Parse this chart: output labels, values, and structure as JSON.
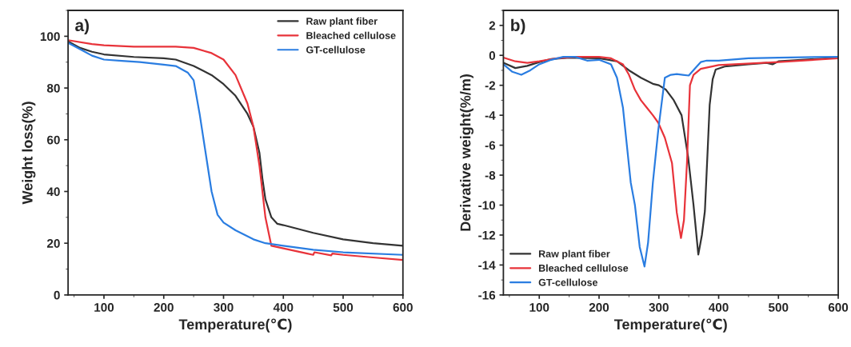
{
  "chart_data": [
    {
      "type": "line",
      "xlabel": "Temperature(℃)",
      "ylabel": "Weight loss(%)",
      "annotations": [
        "a)"
      ],
      "xlim": [
        40,
        600
      ],
      "ylim": [
        0,
        110
      ],
      "xticks": [
        100,
        200,
        300,
        400,
        500,
        600
      ],
      "yticks": [
        0,
        20,
        40,
        60,
        80,
        100
      ],
      "legend": "top right",
      "grid": false,
      "marker": "none",
      "line_style": "solid",
      "series": [
        {
          "name": "Raw plant fiber",
          "color": "#333333",
          "x": [
            40,
            60,
            80,
            100,
            150,
            200,
            220,
            250,
            280,
            300,
            320,
            340,
            350,
            360,
            365,
            370,
            380,
            390,
            400,
            450,
            500,
            550,
            600
          ],
          "values": [
            98,
            95.5,
            94,
            93,
            92,
            91.5,
            91,
            88.5,
            85,
            81.5,
            77,
            70,
            65,
            55,
            45,
            37,
            30,
            27.5,
            27,
            24,
            21.5,
            20,
            19
          ]
        },
        {
          "name": "Bleached cellulose",
          "color": "#e8333a",
          "x": [
            40,
            80,
            100,
            150,
            200,
            220,
            250,
            280,
            300,
            320,
            340,
            350,
            360,
            365,
            370,
            380,
            400,
            440,
            450,
            452,
            480,
            482,
            500,
            550,
            600
          ],
          "values": [
            98.5,
            97,
            96.5,
            96,
            96,
            96,
            95.5,
            93.5,
            91,
            85,
            74,
            65,
            50,
            40,
            30,
            19,
            18,
            16,
            15.5,
            16.5,
            15.3,
            16,
            15.5,
            14.5,
            13.5
          ]
        },
        {
          "name": "GT-cellulose",
          "color": "#2a7de1",
          "x": [
            40,
            60,
            80,
            100,
            130,
            160,
            200,
            220,
            240,
            250,
            260,
            270,
            280,
            290,
            300,
            320,
            350,
            370,
            400,
            450,
            500,
            600
          ],
          "values": [
            97.5,
            95,
            92.5,
            91,
            90.5,
            90,
            89,
            88.5,
            86,
            83,
            70,
            55,
            40,
            31,
            28,
            25,
            21.5,
            20,
            19,
            17.5,
            16.5,
            15.5
          ]
        }
      ]
    },
    {
      "type": "line",
      "xlabel": "Temperature(℃)",
      "ylabel": "Derivative weight(%/m)",
      "annotations": [
        "b)"
      ],
      "xlim": [
        40,
        600
      ],
      "ylim": [
        -16,
        3
      ],
      "xticks": [
        100,
        200,
        300,
        400,
        500,
        600
      ],
      "yticks": [
        -16,
        -14,
        -12,
        -10,
        -8,
        -6,
        -4,
        -2,
        0,
        2
      ],
      "legend": "bottom left",
      "grid": false,
      "marker": "none",
      "line_style": "solid",
      "series": [
        {
          "name": "Raw plant fiber",
          "color": "#333333",
          "x": [
            40,
            60,
            80,
            100,
            120,
            150,
            200,
            230,
            250,
            270,
            290,
            300,
            312,
            325,
            338,
            349,
            358,
            366,
            372,
            377,
            382,
            385,
            390,
            395,
            410,
            450,
            480,
            490,
            500,
            600
          ],
          "values": [
            -0.5,
            -0.85,
            -0.7,
            -0.45,
            -0.25,
            -0.15,
            -0.2,
            -0.4,
            -1.0,
            -1.5,
            -1.9,
            -2.0,
            -2.3,
            -3,
            -4,
            -6.8,
            -10,
            -13.3,
            -12,
            -10.4,
            -6,
            -3.3,
            -1.6,
            -0.95,
            -0.75,
            -0.6,
            -0.5,
            -0.6,
            -0.4,
            -0.15
          ]
        },
        {
          "name": "Bleached cellulose",
          "color": "#e8333a",
          "x": [
            40,
            60,
            80,
            100,
            130,
            160,
            200,
            220,
            240,
            250,
            260,
            270,
            280,
            290,
            299,
            310,
            322,
            330,
            337,
            342,
            347,
            352,
            358,
            370,
            400,
            500,
            600
          ],
          "values": [
            -0.15,
            -0.4,
            -0.5,
            -0.4,
            -0.2,
            -0.1,
            -0.1,
            -0.2,
            -0.6,
            -1.3,
            -2.3,
            -3,
            -3.5,
            -4,
            -4.5,
            -5.5,
            -7.2,
            -10.5,
            -12.2,
            -11,
            -7.2,
            -2,
            -1.3,
            -0.9,
            -0.65,
            -0.45,
            -0.2
          ]
        },
        {
          "name": "GT-cellulose",
          "color": "#2a7de1",
          "x": [
            40,
            55,
            70,
            85,
            100,
            120,
            140,
            160,
            180,
            200,
            220,
            230,
            240,
            253,
            260,
            268,
            276,
            282,
            290,
            299,
            310,
            320,
            330,
            340,
            350,
            360,
            370,
            380,
            400,
            450,
            500,
            600
          ],
          "values": [
            -0.6,
            -1.1,
            -1.3,
            -1.0,
            -0.6,
            -0.3,
            -0.1,
            -0.1,
            -0.35,
            -0.3,
            -0.6,
            -1.5,
            -3.5,
            -8.5,
            -10,
            -12.8,
            -14.1,
            -12.5,
            -8.5,
            -5,
            -1.5,
            -1.3,
            -1.25,
            -1.3,
            -1.35,
            -0.9,
            -0.45,
            -0.35,
            -0.35,
            -0.2,
            -0.15,
            -0.1
          ]
        }
      ]
    }
  ]
}
